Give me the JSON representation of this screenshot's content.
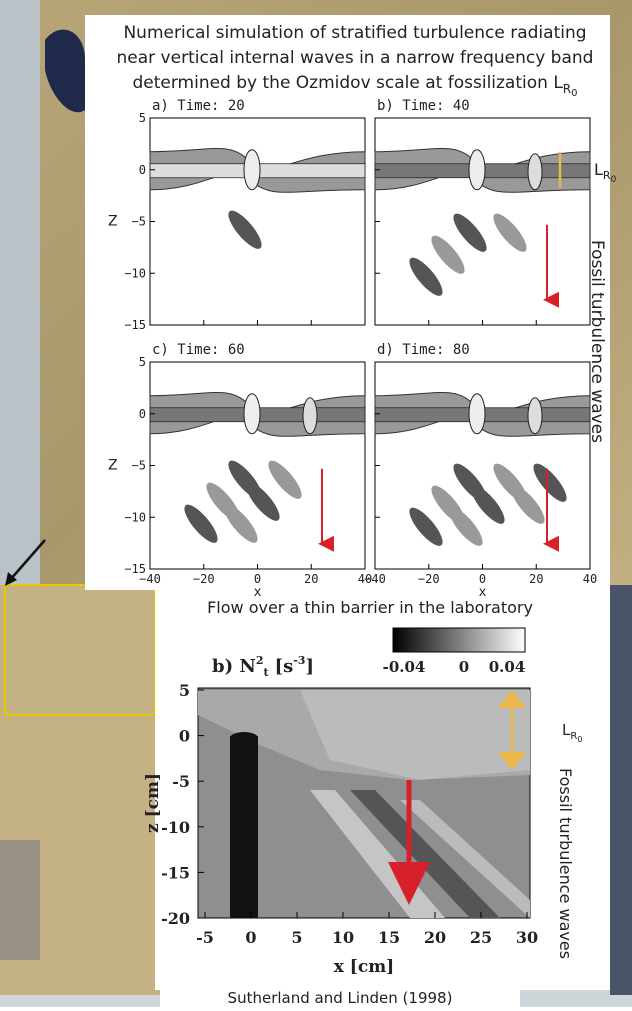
{
  "top_figure": {
    "title_lines": [
      "Numerical simulation of stratified turbulence radiating",
      "near vertical internal waves in a narrow frequency band",
      "determined by the Ozmidov scale at fossilization L"
    ],
    "title_subscript": "R",
    "title_subsubscript": "0",
    "panels": [
      {
        "label": "a) Time: 20"
      },
      {
        "label": "b) Time: 40"
      },
      {
        "label": "c) Time: 60"
      },
      {
        "label": "d) Time: 80"
      }
    ],
    "yticks": [
      "5",
      "0",
      "−5",
      "−10",
      "−15"
    ],
    "xticks": [
      "−40",
      "−20",
      "0",
      "20",
      "40"
    ],
    "y_label": "Z",
    "x_label": "x",
    "side_symbol": "L",
    "side_subscript": "R",
    "side_subsubscript": "0",
    "side_label": "Fossil turbulence waves"
  },
  "lab_figure": {
    "caption": "Flow over a thin barrier in the laboratory",
    "panel_label": "b) N",
    "panel_label_sup": "2",
    "panel_label_sub": "t",
    "panel_label_units": "[s",
    "panel_label_units_sup": "-3",
    "panel_label_units_end": "]",
    "colorbar_ticks": [
      "-0.04",
      "0",
      "0.04"
    ],
    "yticks": [
      "5",
      "0",
      "-5",
      "-10",
      "-15",
      "-20"
    ],
    "xticks": [
      "-5",
      "0",
      "5",
      "10",
      "15",
      "20",
      "25",
      "30"
    ],
    "y_label": "z [cm]",
    "x_label": "x [cm]",
    "side_symbol": "L",
    "side_subscript": "R",
    "side_subsubscript": "0",
    "side_label": "Fossil turbulence waves"
  },
  "credit": "Sutherland and Linden (1998)"
}
